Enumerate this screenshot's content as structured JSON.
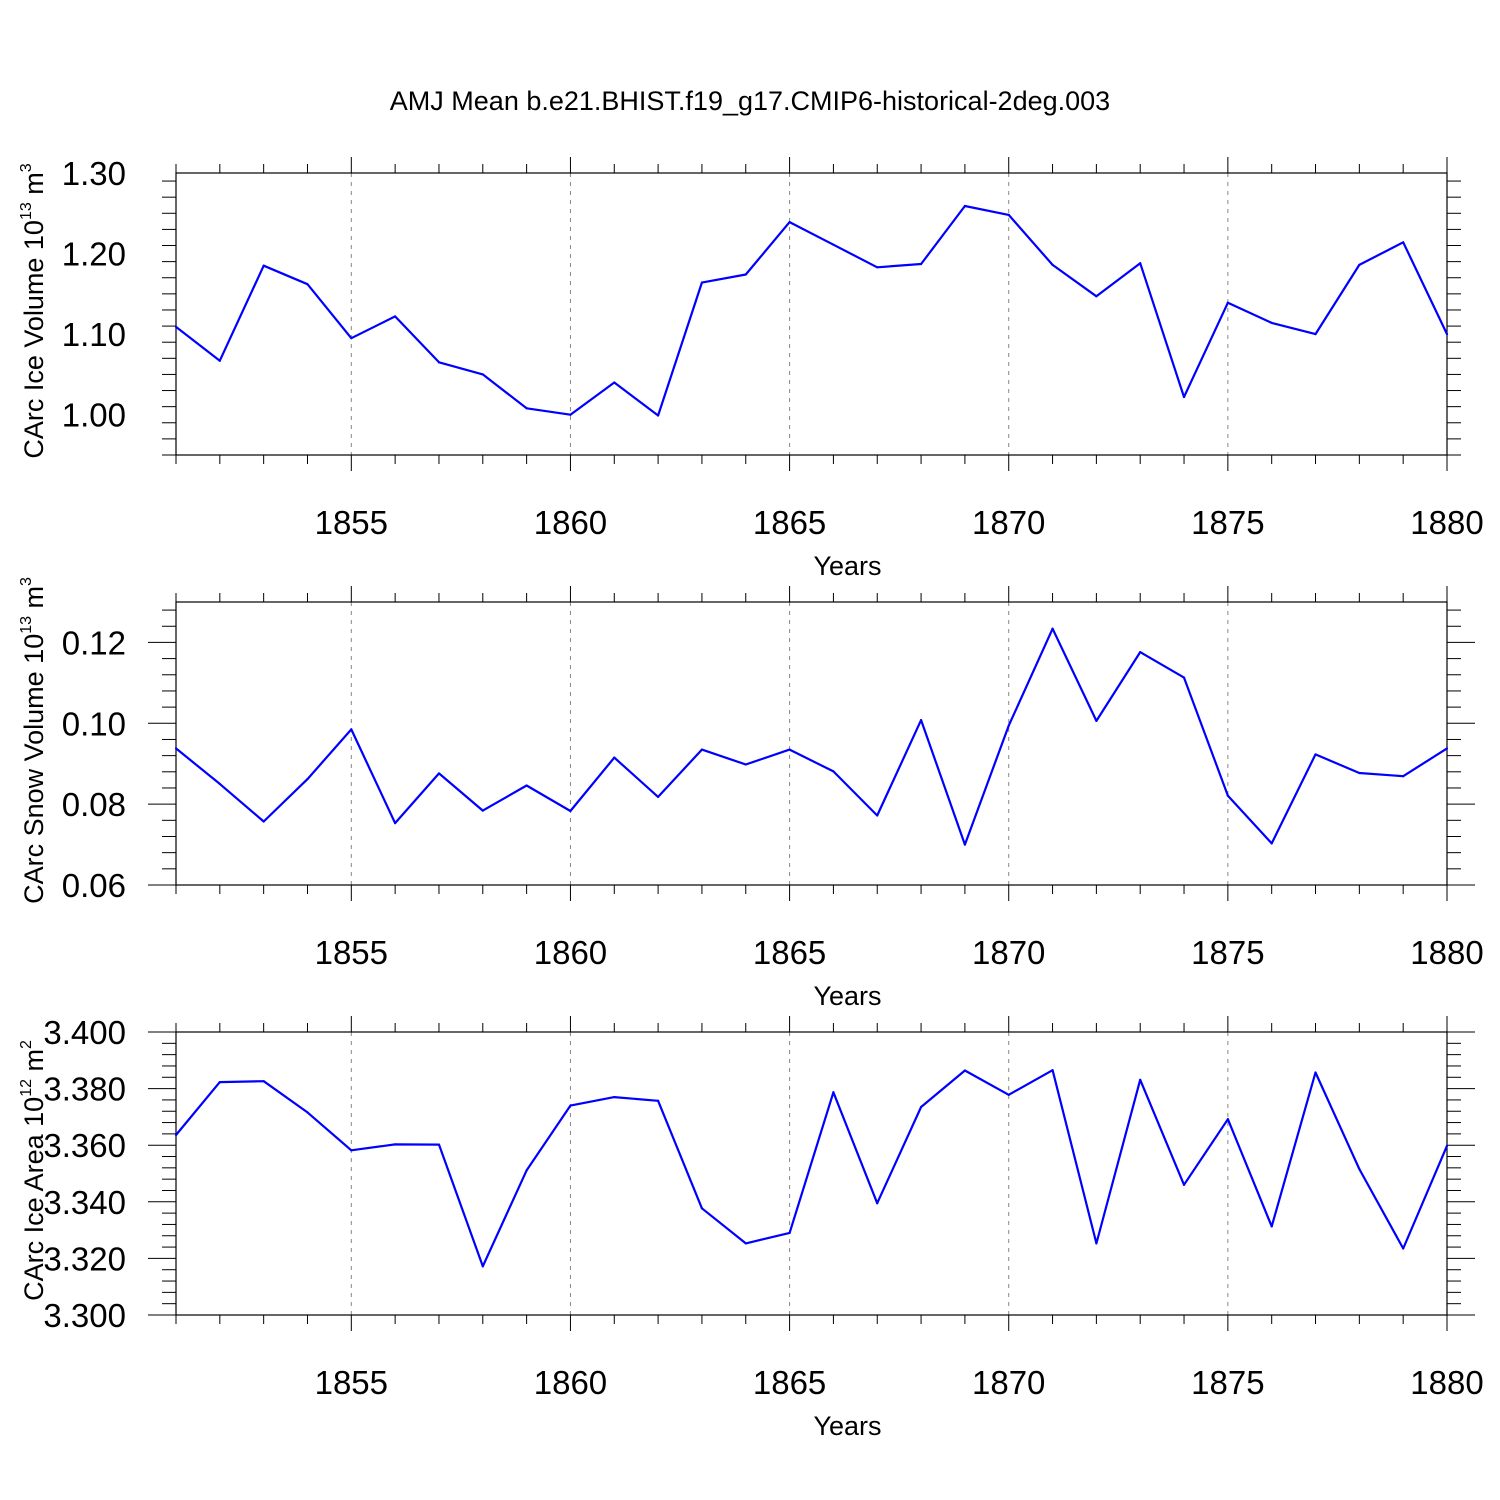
{
  "title": "AMJ Mean b.e21.BHIST.f19_g17.CMIP6-historical-2deg.003",
  "colors": {
    "line": "#0000ff",
    "axis": "#000000",
    "grid": "#888888"
  },
  "chart_data": [
    {
      "type": "line",
      "ylabel_main": "CArc Ice Volume 10",
      "ylabel_exp": "13",
      "ylabel_unit": " m",
      "ylabel_unit_exp": "3",
      "xlabel": "Years",
      "xlim": [
        1851,
        1880
      ],
      "ylim": [
        0.95,
        1.3
      ],
      "yticks": [
        "1.00",
        "1.10",
        "1.20",
        "1.30"
      ],
      "xticks": [
        "1855",
        "1860",
        "1865",
        "1870",
        "1875",
        "1880"
      ],
      "x": [
        1851,
        1852,
        1853,
        1854,
        1855,
        1856,
        1857,
        1858,
        1859,
        1860,
        1861,
        1862,
        1863,
        1864,
        1865,
        1866,
        1867,
        1868,
        1869,
        1870,
        1871,
        1872,
        1873,
        1874,
        1875,
        1876,
        1877,
        1878,
        1879,
        1880
      ],
      "values": [
        1.109,
        1.067,
        1.185,
        1.162,
        1.095,
        1.122,
        1.065,
        1.05,
        1.008,
        1.0,
        1.04,
        0.999,
        1.164,
        1.174,
        1.239,
        1.211,
        1.183,
        1.187,
        1.259,
        1.248,
        1.186,
        1.147,
        1.188,
        1.022,
        1.139,
        1.114,
        1.1,
        1.186,
        1.214,
        1.1
      ]
    },
    {
      "type": "line",
      "ylabel_main": "CArc Snow Volume 10",
      "ylabel_exp": "13",
      "ylabel_unit": " m",
      "ylabel_unit_exp": "3",
      "xlabel": "Years",
      "xlim": [
        1851,
        1880
      ],
      "ylim": [
        0.06,
        0.13
      ],
      "yticks": [
        "0.06",
        "0.08",
        "0.10",
        "0.12"
      ],
      "xticks": [
        "1855",
        "1860",
        "1865",
        "1870",
        "1875",
        "1880"
      ],
      "x": [
        1851,
        1852,
        1853,
        1854,
        1855,
        1856,
        1857,
        1858,
        1859,
        1860,
        1861,
        1862,
        1863,
        1864,
        1865,
        1866,
        1867,
        1868,
        1869,
        1870,
        1871,
        1872,
        1873,
        1874,
        1875,
        1876,
        1877,
        1878,
        1879,
        1880
      ],
      "values": [
        0.0938,
        0.085,
        0.0757,
        0.0862,
        0.0985,
        0.0753,
        0.0876,
        0.0784,
        0.0846,
        0.0783,
        0.0915,
        0.0818,
        0.0935,
        0.0898,
        0.0935,
        0.0881,
        0.0772,
        0.1008,
        0.07,
        0.0994,
        0.1234,
        0.1006,
        0.1176,
        0.1113,
        0.0821,
        0.0703,
        0.0923,
        0.0877,
        0.0869,
        0.0938
      ]
    },
    {
      "type": "line",
      "ylabel_main": "CArc Ice Area 10",
      "ylabel_exp": "12",
      "ylabel_unit": " m",
      "ylabel_unit_exp": "2",
      "xlabel": "Years",
      "xlim": [
        1851,
        1880
      ],
      "ylim": [
        3.3,
        3.4
      ],
      "yticks": [
        "3.300",
        "3.320",
        "3.340",
        "3.360",
        "3.380",
        "3.400"
      ],
      "xticks": [
        "1855",
        "1860",
        "1865",
        "1870",
        "1875",
        "1880"
      ],
      "x": [
        1851,
        1852,
        1853,
        1854,
        1855,
        1856,
        1857,
        1858,
        1859,
        1860,
        1861,
        1862,
        1863,
        1864,
        1865,
        1866,
        1867,
        1868,
        1869,
        1870,
        1871,
        1872,
        1873,
        1874,
        1875,
        1876,
        1877,
        1878,
        1879,
        1880
      ],
      "values": [
        3.3636,
        3.3823,
        3.3826,
        3.3716,
        3.3582,
        3.3603,
        3.3602,
        3.3172,
        3.3511,
        3.374,
        3.377,
        3.3757,
        3.3377,
        3.3253,
        3.329,
        3.3787,
        3.3395,
        3.3735,
        3.3864,
        3.3778,
        3.3865,
        3.3253,
        3.3831,
        3.346,
        3.3692,
        3.3313,
        3.3857,
        3.3516,
        3.3235,
        3.3598
      ]
    }
  ]
}
